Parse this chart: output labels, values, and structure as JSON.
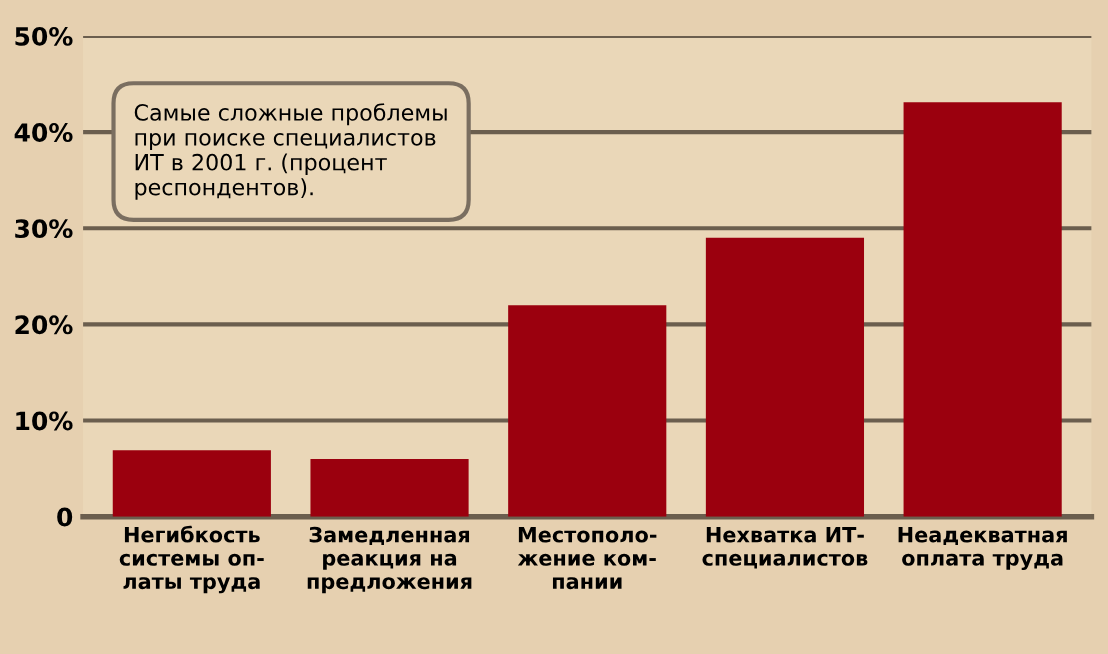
{
  "chart_data": {
    "type": "bar",
    "categories": [
      "Негибкость\nсистемы оп-\nлаты труда",
      "Замедленная\nреакция на\nпредложения",
      "Местополо-\nжение ком-\nпании",
      "Нехватка ИТ-\nспециалистов",
      "Неадекватная\nоплата труда"
    ],
    "values": [
      6.9,
      6.0,
      22.0,
      29.0,
      43.1
    ],
    "color": "#9b000e",
    "ylim": [
      0,
      50
    ],
    "yticks": [
      {
        "value": 0,
        "label": "0"
      },
      {
        "value": 10,
        "label": "10%"
      },
      {
        "value": 20,
        "label": "20%"
      },
      {
        "value": 30,
        "label": "30%"
      },
      {
        "value": 40,
        "label": "40%"
      },
      {
        "value": 50,
        "label": "50%"
      }
    ],
    "grid": "y",
    "annotations": [
      "Самые сложные проблемы\nпри поиске специалистов\nИТ в 2001 г. (процент\nреспондентов)."
    ]
  }
}
